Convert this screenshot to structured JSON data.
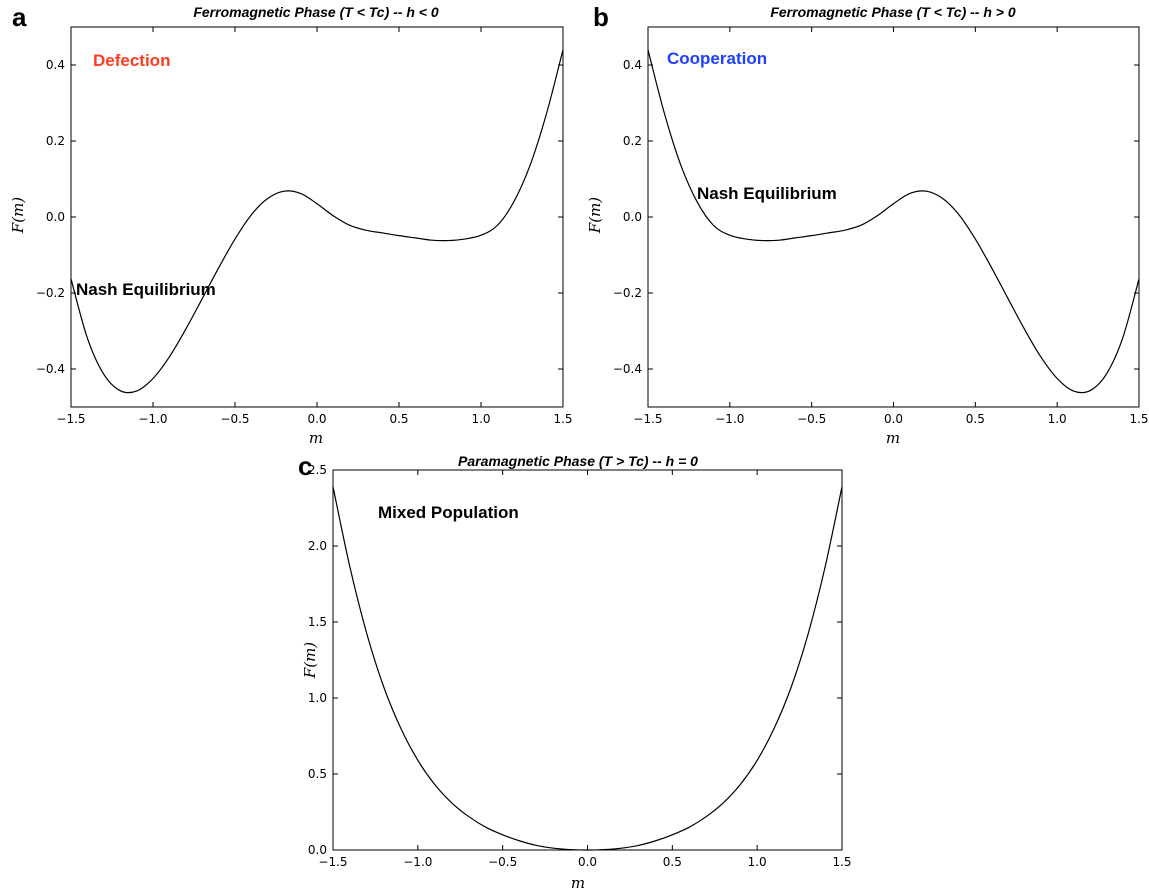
{
  "chart_data": [
    {
      "type": "line",
      "panel_label": "a",
      "title": "Ferromagnetic Phase (T < Tc) -- h < 0",
      "xlabel": "m",
      "ylabel": "F(m)",
      "xlim": [
        -1.5,
        1.5
      ],
      "ylim": [
        -0.5,
        0.5
      ],
      "x_ticks": [
        "−1.5",
        "−1.0",
        "−0.5",
        "0.0",
        "0.5",
        "1.0",
        "1.5"
      ],
      "y_ticks": [
        "−0.4",
        "−0.2",
        "0.0",
        "0.2",
        "0.4"
      ],
      "series": [
        {
          "x": [
            -1.5,
            -1.4,
            -1.3,
            -1.2,
            -1.1,
            -1.0,
            -0.9,
            -0.8,
            -0.7,
            -0.6,
            -0.5,
            -0.4,
            -0.3,
            -0.2,
            -0.1,
            0.0,
            0.1,
            0.2,
            0.3,
            0.4,
            0.5,
            0.6,
            0.7,
            0.8,
            0.9,
            1.0,
            1.1,
            1.2,
            1.3,
            1.4,
            1.5
          ],
          "y": [
            -0.163,
            -0.319,
            -0.414,
            -0.457,
            -0.458,
            -0.425,
            -0.368,
            -0.295,
            -0.215,
            -0.134,
            -0.058,
            0.006,
            0.049,
            0.068,
            0.062,
            0.035,
            0.003,
            -0.022,
            -0.035,
            -0.042,
            -0.049,
            -0.055,
            -0.061,
            -0.062,
            -0.058,
            -0.048,
            -0.022,
            0.04,
            0.137,
            0.273,
            0.44
          ]
        }
      ],
      "annotations": [
        {
          "text": "Defection",
          "color": "#ff3b1f"
        },
        {
          "text": "Nash Equilibrium",
          "color": "#000000"
        }
      ]
    },
    {
      "type": "line",
      "panel_label": "b",
      "title": "Ferromagnetic Phase (T < Tc) -- h > 0",
      "xlabel": "m",
      "ylabel": "F(m)",
      "xlim": [
        -1.5,
        1.5
      ],
      "ylim": [
        -0.5,
        0.5
      ],
      "x_ticks": [
        "−1.5",
        "−1.0",
        "−0.5",
        "0.0",
        "0.5",
        "1.0",
        "1.5"
      ],
      "y_ticks": [
        "−0.4",
        "−0.2",
        "0.0",
        "0.2",
        "0.4"
      ],
      "series": [
        {
          "x": [
            -1.5,
            -1.4,
            -1.3,
            -1.2,
            -1.1,
            -1.0,
            -0.9,
            -0.8,
            -0.7,
            -0.6,
            -0.5,
            -0.4,
            -0.3,
            -0.2,
            -0.1,
            0.0,
            0.1,
            0.2,
            0.3,
            0.4,
            0.5,
            0.6,
            0.7,
            0.8,
            0.9,
            1.0,
            1.1,
            1.2,
            1.3,
            1.4,
            1.5
          ],
          "y": [
            0.44,
            0.273,
            0.137,
            0.04,
            -0.022,
            -0.048,
            -0.058,
            -0.062,
            -0.061,
            -0.055,
            -0.049,
            -0.042,
            -0.035,
            -0.022,
            0.003,
            0.035,
            0.062,
            0.068,
            0.049,
            0.006,
            -0.058,
            -0.134,
            -0.215,
            -0.295,
            -0.368,
            -0.425,
            -0.458,
            -0.457,
            -0.414,
            -0.319,
            -0.163
          ]
        }
      ],
      "annotations": [
        {
          "text": "Cooperation",
          "color": "#1f3fff"
        },
        {
          "text": "Nash Equilibrium",
          "color": "#000000"
        }
      ]
    },
    {
      "type": "line",
      "panel_label": "c",
      "title": "Paramagnetic Phase (T > Tc) -- h = 0",
      "xlabel": "m",
      "ylabel": "F(m)",
      "xlim": [
        -1.5,
        1.5
      ],
      "ylim": [
        0.0,
        2.5
      ],
      "x_ticks": [
        "−1.5",
        "−1.0",
        "−0.5",
        "0.0",
        "0.5",
        "1.0",
        "1.5"
      ],
      "y_ticks": [
        "0.0",
        "0.5",
        "1.0",
        "1.5",
        "2.0",
        "2.5"
      ],
      "series": [
        {
          "x": [
            -1.5,
            -1.4,
            -1.3,
            -1.2,
            -1.1,
            -1.0,
            -0.9,
            -0.8,
            -0.7,
            -0.6,
            -0.5,
            -0.4,
            -0.3,
            -0.2,
            -0.1,
            0.0,
            0.1,
            0.2,
            0.3,
            0.4,
            0.5,
            0.6,
            0.7,
            0.8,
            0.9,
            1.0,
            1.1,
            1.2,
            1.3,
            1.4,
            1.5
          ],
          "y": [
            2.39,
            1.86,
            1.42,
            1.07,
            0.8,
            0.59,
            0.43,
            0.31,
            0.22,
            0.15,
            0.1,
            0.06,
            0.03,
            0.012,
            0.003,
            0.0,
            0.003,
            0.012,
            0.03,
            0.06,
            0.1,
            0.15,
            0.22,
            0.31,
            0.43,
            0.59,
            0.8,
            1.07,
            1.42,
            1.86,
            2.39
          ]
        }
      ],
      "annotations": [
        {
          "text": "Mixed Population",
          "color": "#000000"
        }
      ]
    }
  ]
}
